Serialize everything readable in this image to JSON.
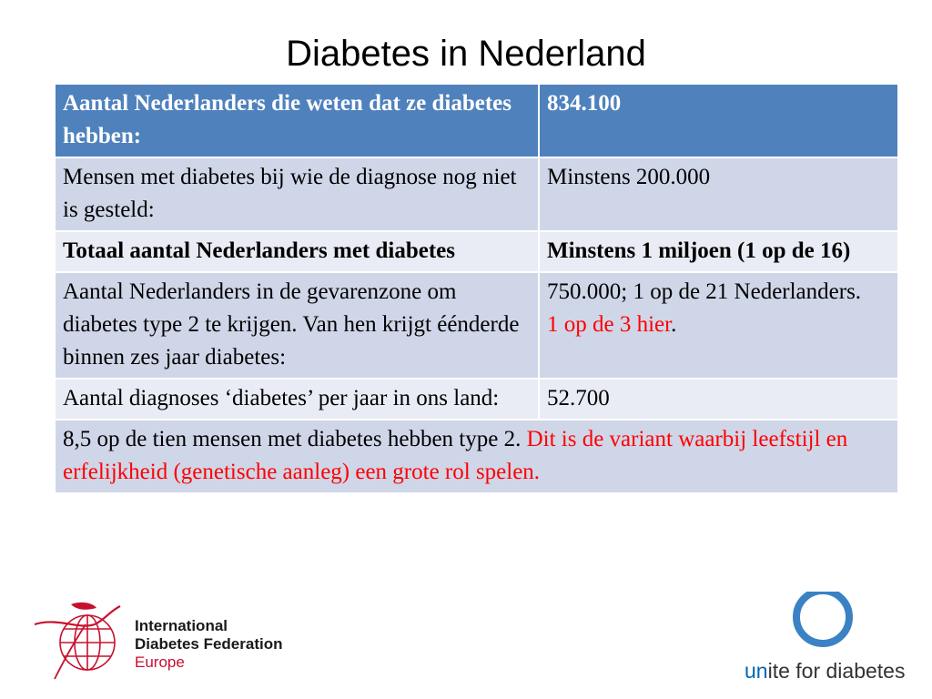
{
  "title": "Diabetes in Nederland",
  "table": {
    "rows": [
      {
        "label": "Aantal Nederlanders die weten dat ze diabetes hebben:",
        "value": "834.100"
      },
      {
        "label": "Mensen met diabetes bij wie de diagnose nog niet is gesteld:",
        "value": "Minstens 200.000"
      },
      {
        "label": "Totaal aantal Nederlanders met diabetes",
        "value": "Minstens 1 miljoen (1 op de 16)"
      },
      {
        "label": "Aantal Nederlanders in de gevarenzone om diabetes type 2 te krijgen. Van hen krijgt éénderde binnen zes jaar diabetes:",
        "value_line1": "750.000; 1 op de 21 Nederlanders.",
        "value_red": "1 op de 3 hier",
        "value_end": "."
      },
      {
        "label": "Aantal diagnoses ‘diabetes’ per jaar in ons land:",
        "value": "52.700"
      }
    ],
    "footer": {
      "black": "8,5 op de tien mensen met diabetes hebben type 2. ",
      "red": "Dit is de variant waarbij leefstijl en erfelijkheid (genetische aanleg) een grote rol spelen."
    }
  },
  "logos": {
    "idf": {
      "line1": "International",
      "line2": "Diabetes Federation",
      "line3": "Europe"
    },
    "unite": {
      "prefix": "un",
      "rest": "ite for diabetes"
    }
  },
  "colors": {
    "header": "#4f81bd",
    "row_dark": "#cfd6e8",
    "row_light": "#e9ecf4",
    "highlight": "#ff0000",
    "ring": "#3a82c4"
  }
}
